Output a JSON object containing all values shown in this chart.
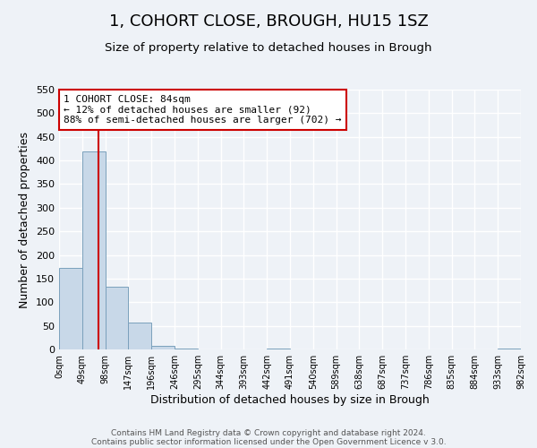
{
  "title": "1, COHORT CLOSE, BROUGH, HU15 1SZ",
  "subtitle": "Size of property relative to detached houses in Brough",
  "xlabel": "Distribution of detached houses by size in Brough",
  "ylabel": "Number of detached properties",
  "bin_edges": [
    0,
    49,
    98,
    147,
    196,
    245,
    294,
    343,
    392,
    441,
    490,
    539,
    588,
    637,
    686,
    735,
    784,
    833,
    882,
    931,
    980
  ],
  "bin_labels": [
    "0sqm",
    "49sqm",
    "98sqm",
    "147sqm",
    "196sqm",
    "246sqm",
    "295sqm",
    "344sqm",
    "393sqm",
    "442sqm",
    "491sqm",
    "540sqm",
    "589sqm",
    "638sqm",
    "687sqm",
    "737sqm",
    "786sqm",
    "835sqm",
    "884sqm",
    "933sqm",
    "982sqm"
  ],
  "bar_heights": [
    172,
    420,
    133,
    57,
    7,
    1,
    0,
    0,
    0,
    1,
    0,
    0,
    0,
    0,
    0,
    0,
    0,
    0,
    0,
    1
  ],
  "bar_color": "#c8d8e8",
  "bar_edge_color": "#7aa0bc",
  "ylim": [
    0,
    550
  ],
  "yticks": [
    0,
    50,
    100,
    150,
    200,
    250,
    300,
    350,
    400,
    450,
    500,
    550
  ],
  "property_line_x": 84,
  "property_line_color": "#cc0000",
  "annotation_line1": "1 COHORT CLOSE: 84sqm",
  "annotation_line2": "← 12% of detached houses are smaller (92)",
  "annotation_line3": "88% of semi-detached houses are larger (702) →",
  "annotation_box_color": "#cc0000",
  "footer_line1": "Contains HM Land Registry data © Crown copyright and database right 2024.",
  "footer_line2": "Contains public sector information licensed under the Open Government Licence v 3.0.",
  "background_color": "#eef2f7",
  "grid_color": "#ffffff",
  "title_fontsize": 13,
  "subtitle_fontsize": 9.5
}
